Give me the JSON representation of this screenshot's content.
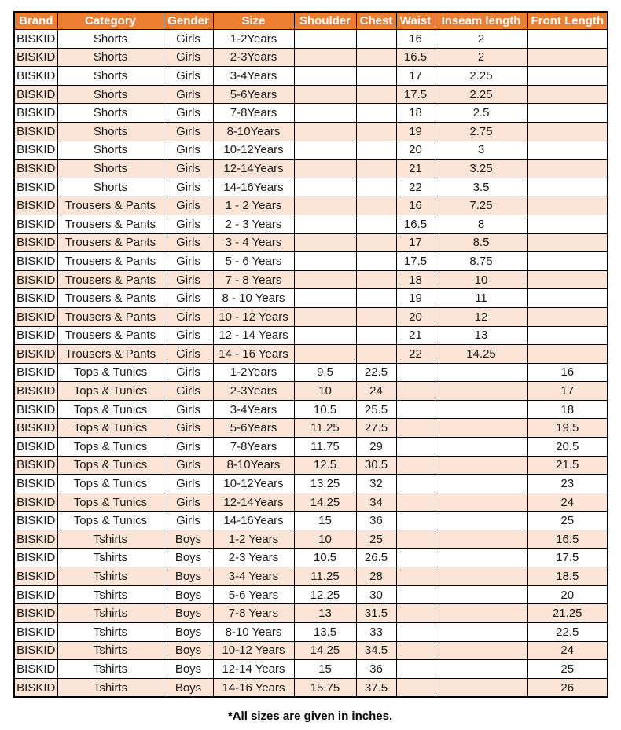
{
  "chart_data": {
    "type": "table",
    "columns": [
      "Brand",
      "Category",
      "Gender",
      "Size",
      "Shoulder",
      "Chest",
      "Waist",
      "Inseam length",
      "Front Length"
    ],
    "rows": [
      [
        "BISKID",
        "Shorts",
        "Girls",
        "1-2Years",
        "",
        "",
        "16",
        "2",
        ""
      ],
      [
        "BISKID",
        "Shorts",
        "Girls",
        "2-3Years",
        "",
        "",
        "16.5",
        "2",
        ""
      ],
      [
        "BISKID",
        "Shorts",
        "Girls",
        "3-4Years",
        "",
        "",
        "17",
        "2.25",
        ""
      ],
      [
        "BISKID",
        "Shorts",
        "Girls",
        "5-6Years",
        "",
        "",
        "17.5",
        "2.25",
        ""
      ],
      [
        "BISKID",
        "Shorts",
        "Girls",
        "7-8Years",
        "",
        "",
        "18",
        "2.5",
        ""
      ],
      [
        "BISKID",
        "Shorts",
        "Girls",
        "8-10Years",
        "",
        "",
        "19",
        "2.75",
        ""
      ],
      [
        "BISKID",
        "Shorts",
        "Girls",
        "10-12Years",
        "",
        "",
        "20",
        "3",
        ""
      ],
      [
        "BISKID",
        "Shorts",
        "Girls",
        "12-14Years",
        "",
        "",
        "21",
        "3.25",
        ""
      ],
      [
        "BISKID",
        "Shorts",
        "Girls",
        "14-16Years",
        "",
        "",
        "22",
        "3.5",
        ""
      ],
      [
        "BISKID",
        "Trousers & Pants",
        "Girls",
        "1 - 2 Years",
        "",
        "",
        "16",
        "7.25",
        ""
      ],
      [
        "BISKID",
        "Trousers & Pants",
        "Girls",
        "2 - 3 Years",
        "",
        "",
        "16.5",
        "8",
        ""
      ],
      [
        "BISKID",
        "Trousers & Pants",
        "Girls",
        "3 - 4 Years",
        "",
        "",
        "17",
        "8.5",
        ""
      ],
      [
        "BISKID",
        "Trousers & Pants",
        "Girls",
        "5 - 6 Years",
        "",
        "",
        "17.5",
        "8.75",
        ""
      ],
      [
        "BISKID",
        "Trousers & Pants",
        "Girls",
        "7 - 8 Years",
        "",
        "",
        "18",
        "10",
        ""
      ],
      [
        "BISKID",
        "Trousers & Pants",
        "Girls",
        "8 - 10 Years",
        "",
        "",
        "19",
        "11",
        ""
      ],
      [
        "BISKID",
        "Trousers & Pants",
        "Girls",
        "10 - 12 Years",
        "",
        "",
        "20",
        "12",
        ""
      ],
      [
        "BISKID",
        "Trousers & Pants",
        "Girls",
        "12 - 14 Years",
        "",
        "",
        "21",
        "13",
        ""
      ],
      [
        "BISKID",
        "Trousers & Pants",
        "Girls",
        "14 - 16 Years",
        "",
        "",
        "22",
        "14.25",
        ""
      ],
      [
        "BISKID",
        "Tops & Tunics",
        "Girls",
        "1-2Years",
        "9.5",
        "22.5",
        "",
        "",
        "16"
      ],
      [
        "BISKID",
        "Tops & Tunics",
        "Girls",
        "2-3Years",
        "10",
        "24",
        "",
        "",
        "17"
      ],
      [
        "BISKID",
        "Tops & Tunics",
        "Girls",
        "3-4Years",
        "10.5",
        "25.5",
        "",
        "",
        "18"
      ],
      [
        "BISKID",
        "Tops & Tunics",
        "Girls",
        "5-6Years",
        "11.25",
        "27.5",
        "",
        "",
        "19.5"
      ],
      [
        "BISKID",
        "Tops & Tunics",
        "Girls",
        "7-8Years",
        "11.75",
        "29",
        "",
        "",
        "20.5"
      ],
      [
        "BISKID",
        "Tops & Tunics",
        "Girls",
        "8-10Years",
        "12.5",
        "30.5",
        "",
        "",
        "21.5"
      ],
      [
        "BISKID",
        "Tops & Tunics",
        "Girls",
        "10-12Years",
        "13.25",
        "32",
        "",
        "",
        "23"
      ],
      [
        "BISKID",
        "Tops & Tunics",
        "Girls",
        "12-14Years",
        "14.25",
        "34",
        "",
        "",
        "24"
      ],
      [
        "BISKID",
        "Tops & Tunics",
        "Girls",
        "14-16Years",
        "15",
        "36",
        "",
        "",
        "25"
      ],
      [
        "BISKID",
        "Tshirts",
        "Boys",
        "1-2 Years",
        "10",
        "25",
        "",
        "",
        "16.5"
      ],
      [
        "BISKID",
        "Tshirts",
        "Boys",
        "2-3 Years",
        "10.5",
        "26.5",
        "",
        "",
        "17.5"
      ],
      [
        "BISKID",
        "Tshirts",
        "Boys",
        "3-4 Years",
        "11.25",
        "28",
        "",
        "",
        "18.5"
      ],
      [
        "BISKID",
        "Tshirts",
        "Boys",
        "5-6 Years",
        "12.25",
        "30",
        "",
        "",
        "20"
      ],
      [
        "BISKID",
        "Tshirts",
        "Boys",
        "7-8 Years",
        "13",
        "31.5",
        "",
        "",
        "21.25"
      ],
      [
        "BISKID",
        "Tshirts",
        "Boys",
        "8-10 Years",
        "13.5",
        "33",
        "",
        "",
        "22.5"
      ],
      [
        "BISKID",
        "Tshirts",
        "Boys",
        "10-12 Years",
        "14.25",
        "34.5",
        "",
        "",
        "24"
      ],
      [
        "BISKID",
        "Tshirts",
        "Boys",
        "12-14 Years",
        "15",
        "36",
        "",
        "",
        "25"
      ],
      [
        "BISKID",
        "Tshirts",
        "Boys",
        "14-16 Years",
        "15.75",
        "37.5",
        "",
        "",
        "26"
      ]
    ],
    "layout": {
      "striped": "alternating rows white / peach starting white",
      "all_cells_centered": true
    }
  },
  "footer": {
    "note": "*All sizes are given in inches."
  },
  "colors": {
    "header_bg": "#ED7D31",
    "header_text": "#FFFFFF",
    "stripe_bg": "#FCE4D6",
    "row_bg": "#FFFFFF",
    "border": "#000000"
  }
}
